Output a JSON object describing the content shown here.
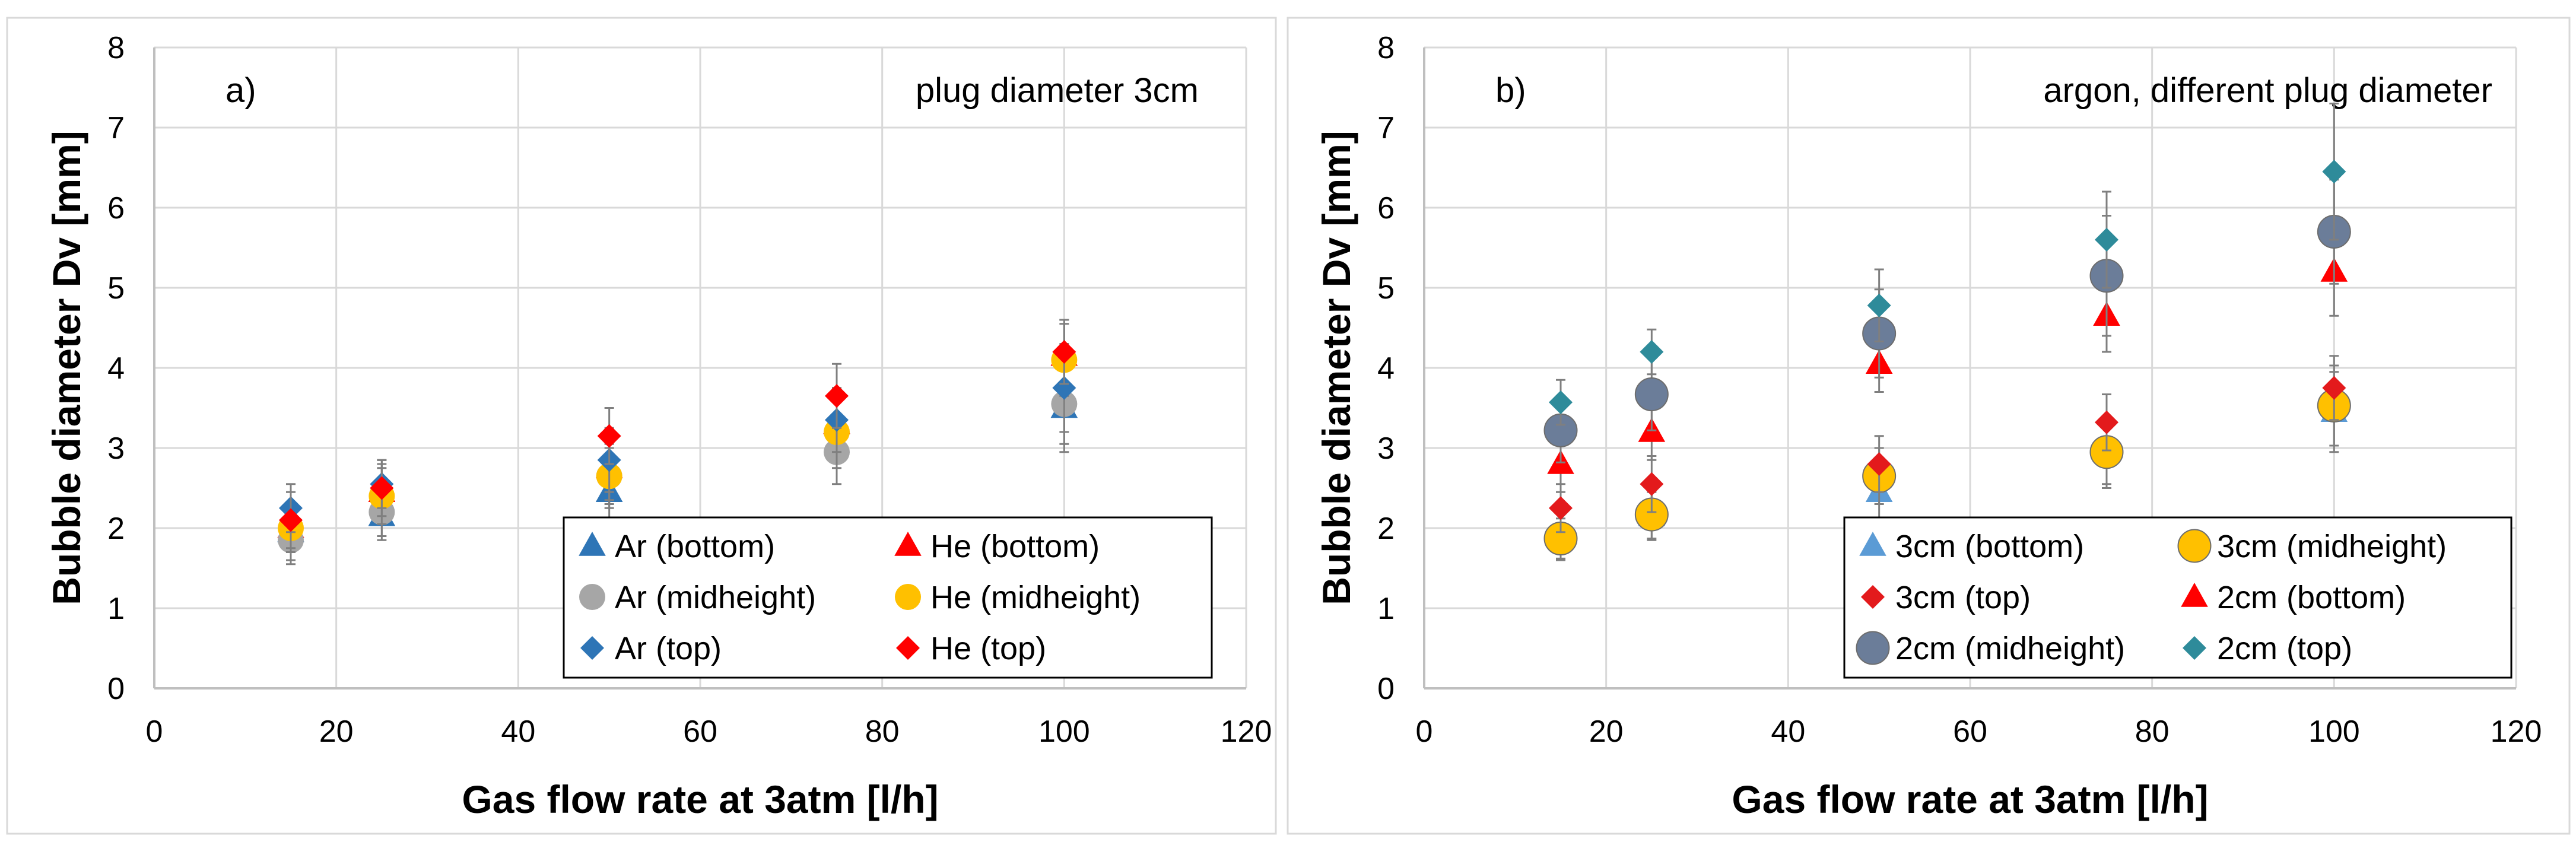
{
  "colors": {
    "ar_bottom": "#2e75b6",
    "ar_mid": "#a6a6a6",
    "ar_top": "#2e75b6",
    "he_bottom": "#ff0000",
    "he_mid": "#ffc000",
    "he_top": "#ff0000",
    "cm3_bottom": "#5b9bd5",
    "cm3_mid": "#ffc000",
    "cm3_top": "#e31a1c",
    "cm2_bottom": "#ff0000",
    "cm2_mid": "#6b7d99",
    "cm2_top": "#2e8b9a",
    "gridline": "#d9d9d9",
    "axis": "#bfbfbf",
    "errorbar": "#7f7f7f",
    "text": "#000000"
  },
  "chart_data": [
    {
      "type": "scatter",
      "panel_label": "a)",
      "annotation": "plug diameter 3cm",
      "xlabel": "Gas flow rate at 3atm [l/h]",
      "ylabel": "Bubble diameter Dv [mm]",
      "xlim": [
        0,
        120
      ],
      "ylim": [
        0,
        8
      ],
      "xticks": [
        0,
        20,
        40,
        60,
        80,
        100,
        120
      ],
      "yticks": [
        0,
        1,
        2,
        3,
        4,
        5,
        6,
        7,
        8
      ],
      "x_tick_labels": [
        "0",
        "20",
        "40",
        "60",
        "80",
        "100",
        "120"
      ],
      "y_tick_labels": [
        "0",
        "1",
        "2",
        "3",
        "4",
        "5",
        "6",
        "7",
        "8"
      ],
      "grid": true,
      "legend_position": "bottom-right",
      "series": [
        {
          "name": "Ar (bottom)",
          "marker": "triangle",
          "color_key": "ar_bottom",
          "x": [
            15,
            25,
            50,
            75,
            100
          ],
          "y": [
            1.95,
            2.15,
            2.45,
            3.3,
            3.5
          ],
          "err": [
            0.35,
            0.3,
            0.4,
            0.4,
            0.55
          ]
        },
        {
          "name": "He (bottom)",
          "marker": "triangle",
          "color_key": "he_bottom",
          "x": [
            15,
            25,
            50,
            75,
            100
          ],
          "y": [
            2.0,
            2.45,
            2.75,
            3.3,
            4.15
          ],
          "err": [
            0.3,
            0.35,
            0.4,
            0.45,
            0.45
          ]
        },
        {
          "name": "Ar (midheight)",
          "marker": "circle",
          "color_key": "ar_mid",
          "x": [
            15,
            25,
            50,
            75,
            100
          ],
          "y": [
            1.85,
            2.2,
            2.65,
            2.95,
            3.55
          ],
          "err": [
            0.3,
            0.3,
            0.35,
            0.4,
            0.5
          ]
        },
        {
          "name": "He (midheight)",
          "marker": "circle",
          "color_key": "he_mid",
          "x": [
            15,
            25,
            50,
            75,
            100
          ],
          "y": [
            2.0,
            2.4,
            2.65,
            3.2,
            4.1
          ],
          "err": [
            0.3,
            0.35,
            0.4,
            0.45,
            0.45
          ]
        },
        {
          "name": "Ar (top)",
          "marker": "diamond",
          "color_key": "ar_top",
          "x": [
            15,
            25,
            50,
            75,
            100
          ],
          "y": [
            2.25,
            2.55,
            2.85,
            3.35,
            3.75
          ],
          "err": [
            0.3,
            0.3,
            0.4,
            0.4,
            0.55
          ]
        },
        {
          "name": "He (top)",
          "marker": "diamond",
          "color_key": "he_top",
          "x": [
            15,
            25,
            50,
            75,
            100
          ],
          "y": [
            2.1,
            2.5,
            3.15,
            3.65,
            4.2
          ],
          "err": [
            0.35,
            0.35,
            0.35,
            0.4,
            0.4
          ]
        }
      ]
    },
    {
      "type": "scatter",
      "panel_label": "b)",
      "annotation": "argon, different plug diameter",
      "xlabel": "Gas flow rate at 3atm [l/h]",
      "ylabel": "Bubble diameter Dv [mm]",
      "xlim": [
        0,
        120
      ],
      "ylim": [
        0,
        8
      ],
      "xticks": [
        0,
        20,
        40,
        60,
        80,
        100,
        120
      ],
      "yticks": [
        0,
        1,
        2,
        3,
        4,
        5,
        6,
        7,
        8
      ],
      "x_tick_labels": [
        "0",
        "20",
        "40",
        "60",
        "80",
        "100",
        "120"
      ],
      "y_tick_labels": [
        "0",
        "1",
        "2",
        "3",
        "4",
        "5",
        "6",
        "7",
        "8"
      ],
      "grid": true,
      "legend_position": "bottom-right",
      "series": [
        {
          "name": "3cm (bottom)",
          "marker": "triangle",
          "color_key": "cm3_bottom",
          "x": [
            15,
            25,
            50,
            75,
            100
          ],
          "y": [
            1.9,
            2.15,
            2.45,
            2.95,
            3.45
          ],
          "err": [
            0.3,
            0.3,
            0.35,
            0.4,
            0.5
          ]
        },
        {
          "name": "3cm (midheight)",
          "marker": "circle",
          "color_key": "cm3_mid",
          "x": [
            15,
            25,
            50,
            75,
            100
          ],
          "y": [
            1.87,
            2.17,
            2.65,
            2.95,
            3.53
          ],
          "err": [
            0.25,
            0.3,
            0.35,
            0.45,
            0.5
          ]
        },
        {
          "name": "3cm (top)",
          "marker": "diamond",
          "color_key": "cm3_top",
          "x": [
            15,
            25,
            50,
            75,
            100
          ],
          "y": [
            2.25,
            2.55,
            2.8,
            3.32,
            3.75
          ],
          "err": [
            0.3,
            0.35,
            0.35,
            0.35,
            0.4
          ]
        },
        {
          "name": "2cm (bottom)",
          "marker": "triangle",
          "color_key": "cm2_bottom",
          "x": [
            15,
            25,
            50,
            75,
            100
          ],
          "y": [
            2.8,
            3.2,
            4.05,
            4.65,
            5.2
          ],
          "err": [
            0.35,
            0.35,
            0.35,
            0.45,
            0.55
          ]
        },
        {
          "name": "2cm (midheight)",
          "marker": "circle",
          "color_key": "cm2_mid",
          "x": [
            15,
            25,
            50,
            75,
            100
          ],
          "y": [
            3.22,
            3.67,
            4.43,
            5.15,
            5.7
          ],
          "err": [
            0.4,
            0.45,
            0.55,
            0.75,
            0.65
          ]
        },
        {
          "name": "2cm (top)",
          "marker": "diamond",
          "color_key": "cm2_top",
          "x": [
            15,
            25,
            50,
            75,
            100
          ],
          "y": [
            3.57,
            4.2,
            4.78,
            5.6,
            6.45
          ],
          "err": [
            0.28,
            0.28,
            0.45,
            0.6,
            0.85
          ]
        }
      ]
    }
  ]
}
